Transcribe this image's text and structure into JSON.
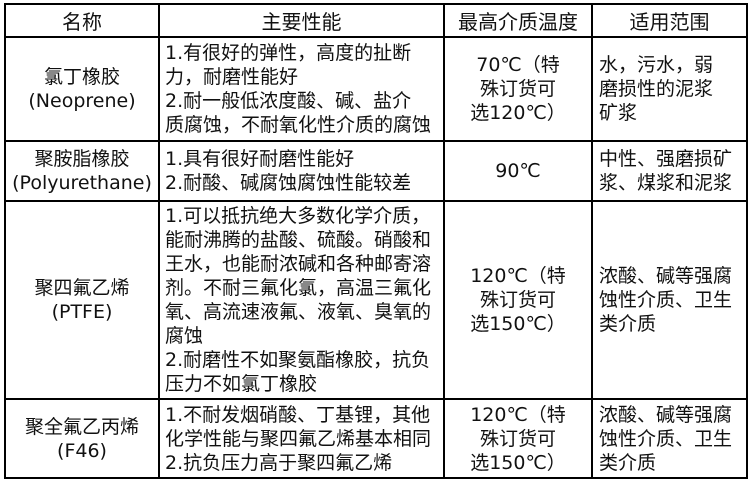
{
  "colors": {
    "background": "#ffffff",
    "border": "#000000",
    "text": "#111111"
  },
  "table": {
    "headers": {
      "name": "名称",
      "performance": "主要性能",
      "temperature": "最高介质温度",
      "range": "适用范围"
    },
    "rows": [
      {
        "name": "氯丁橡胶\n(Neoprene)",
        "performance": [
          "1.有很好的弹性，高度的扯断\n力，耐磨性能好",
          "2.耐一般低浓度酸、碱、盐介\n质腐蚀，不耐氧化性介质的腐蚀"
        ],
        "temperature": "70℃（特\n殊订货可\n选120℃）",
        "range": "水，污水，弱\n磨损性的泥浆\n矿浆"
      },
      {
        "name": "聚胺脂橡胶\n(Polyurethane)",
        "performance": [
          "1.具有很好耐磨性能好",
          "2.耐酸、碱腐蚀腐蚀性能较差"
        ],
        "temperature": "90℃",
        "range": "中性、强磨损矿\n浆、煤浆和泥浆"
      },
      {
        "name": "聚四氟乙烯\n(PTFE)",
        "performance": [
          "1.可以抵抗绝大多数化学介质，\n能耐沸腾的盐酸、硫酸。硝酸和\n王水，也能耐浓碱和各种邮寄溶\n剂。不耐三氟化氯，高温三氟化\n氧、高流速液氟、液氧、臭氧的\n腐蚀",
          "2.耐磨性不如聚氨酯橡胶，抗负\n压力不如氯丁橡胶"
        ],
        "temperature": "120℃（特\n殊订货可\n选150℃）",
        "range": "浓酸、碱等强腐\n蚀性介质、卫生\n类介质"
      },
      {
        "name": "聚全氟乙丙烯\n(F46)",
        "performance": [
          "1.不耐发烟硝酸、丁基锂，其他\n化学性能与聚四氟乙烯基本相同",
          "2.抗负压力高于聚四氟乙烯"
        ],
        "temperature": "120℃（特\n殊订货可\n选150℃）",
        "range": "浓酸、碱等强腐\n蚀性介质、卫生\n类介质"
      }
    ]
  }
}
